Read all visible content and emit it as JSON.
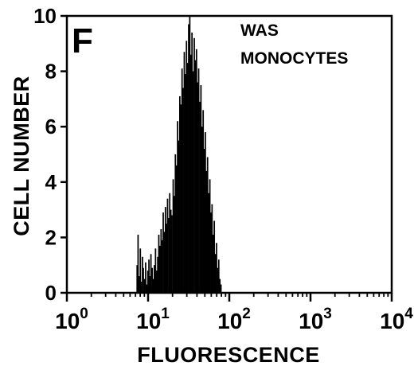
{
  "chart_data": {
    "type": "bar",
    "panel_label": "F",
    "annotation": [
      "WAS",
      "MONOCYTES"
    ],
    "xlabel": "FLUORESCENCE",
    "ylabel": "CELL NUMBER",
    "x_scale": "log",
    "xlim": [
      1,
      10000
    ],
    "ylim": [
      0,
      10
    ],
    "x_ticks": [
      {
        "base": "10",
        "exp": "0",
        "value": 1
      },
      {
        "base": "10",
        "exp": "1",
        "value": 10
      },
      {
        "base": "10",
        "exp": "2",
        "value": 100
      },
      {
        "base": "10",
        "exp": "3",
        "value": 1000
      },
      {
        "base": "10",
        "exp": "4",
        "value": 10000
      }
    ],
    "y_ticks": [
      "0",
      "2",
      "4",
      "6",
      "8",
      "10"
    ],
    "grid": false,
    "bar_color": "#000000",
    "histogram": {
      "x": [
        7.3,
        7.5,
        7.7,
        8.0,
        8.2,
        8.5,
        8.7,
        9.0,
        9.3,
        9.6,
        9.9,
        10.2,
        10.5,
        10.8,
        11.2,
        11.5,
        11.9,
        12.3,
        12.7,
        13.1,
        13.5,
        13.9,
        14.4,
        14.8,
        15.3,
        15.8,
        16.3,
        16.8,
        17.3,
        17.9,
        18.4,
        19.0,
        19.6,
        20.3,
        20.9,
        21.6,
        22.3,
        23.0,
        23.7,
        24.5,
        25.3,
        26.1,
        26.9,
        27.8,
        28.7,
        29.6,
        30.5,
        31.5,
        32.5,
        33.5,
        34.6,
        35.7,
        36.9,
        38.1,
        39.3,
        40.5,
        41.8,
        43.2,
        44.6,
        46.0,
        47.5,
        49.0,
        50.5,
        52.2,
        53.8,
        55.6,
        57.4,
        59.2,
        61.1,
        63.1,
        65.1,
        67.2,
        69.4,
        71.6,
        73.9,
        76.3,
        78.7
      ],
      "counts": [
        1.0,
        2.1,
        0.6,
        1.6,
        0.4,
        1.3,
        0.9,
        0.5,
        1.1,
        0.3,
        0.8,
        1.2,
        0.6,
        1.4,
        0.9,
        0.5,
        1.0,
        1.6,
        0.8,
        1.3,
        2.1,
        1.7,
        2.3,
        1.9,
        2.9,
        2.2,
        3.1,
        2.5,
        3.4,
        2.7,
        3.6,
        3.0,
        2.8,
        4.1,
        3.5,
        5.0,
        4.6,
        6.2,
        5.5,
        7.1,
        6.8,
        8.1,
        7.4,
        8.7,
        7.9,
        9.1,
        8.3,
        9.7,
        10.0,
        8.6,
        9.4,
        8.0,
        9.2,
        8.4,
        8.8,
        7.6,
        8.1,
        6.9,
        7.5,
        6.0,
        6.6,
        5.2,
        5.8,
        4.4,
        4.9,
        3.6,
        4.1,
        2.9,
        3.2,
        2.1,
        2.6,
        1.4,
        1.8,
        0.9,
        1.2,
        0.5,
        0.3
      ]
    }
  }
}
